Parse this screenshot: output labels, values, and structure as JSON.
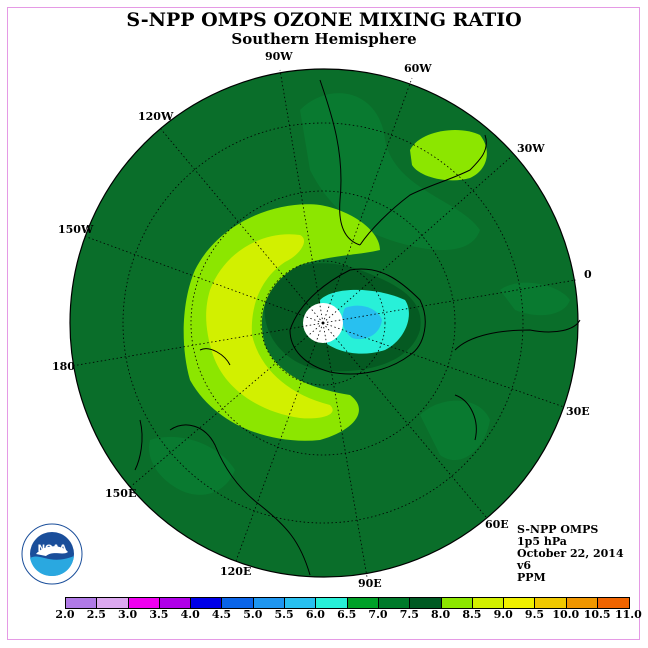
{
  "title": "S-NPP OMPS OZONE MIXING RATIO",
  "subtitle": "Southern Hemisphere",
  "longitude_labels": [
    "90W",
    "60W",
    "30W",
    "0",
    "30E",
    "60E",
    "90E",
    "120E",
    "150E",
    "180",
    "150W",
    "120W"
  ],
  "info": {
    "instrument": "S-NPP OMPS",
    "pressure": "1p5 hPa",
    "date": "October 22, 2014",
    "version": "v6",
    "units": "PPM"
  },
  "logo_text": "NOAA",
  "colorbar": {
    "ticks": [
      "2.0",
      "2.5",
      "3.0",
      "3.5",
      "4.0",
      "4.5",
      "5.0",
      "5.5",
      "6.0",
      "6.5",
      "7.0",
      "7.5",
      "8.0",
      "8.5",
      "9.0",
      "9.5",
      "10.0",
      "10.5",
      "11.0"
    ],
    "colors": [
      "#b07ae6",
      "#dca8f0",
      "#f000f0",
      "#b000e8",
      "#0000e8",
      "#0a64e8",
      "#1e96f0",
      "#28c0f0",
      "#28f0d8",
      "#00a028",
      "#007a2a",
      "#005a22",
      "#8ce600",
      "#d2f000",
      "#f0f000",
      "#f0c800",
      "#f09600",
      "#f06400",
      "#e60000",
      "#8c5a3c"
    ]
  }
}
